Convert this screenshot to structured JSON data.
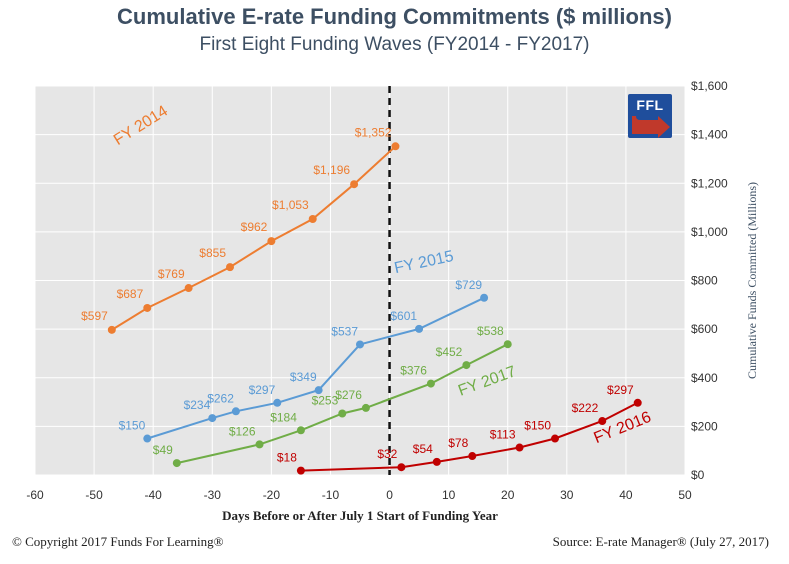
{
  "header": {
    "title": "Cumulative E-rate Funding Commitments ($ millions)",
    "subtitle": "First Eight Funding Waves (FY2014 - FY2017)"
  },
  "footer": {
    "copyright": "© Copyright 2017 Funds For Learning®",
    "source": "Source: E-rate Manager® (July 27, 2017)"
  },
  "logo": {
    "text": "FFL"
  },
  "chart_data": {
    "type": "line",
    "xlabel": "Days Before or After July 1 Start of Funding Year",
    "ylabel": "Cumulative Funds Committed (Millions)",
    "xlim": [
      -60,
      50
    ],
    "ylim": [
      0,
      1600
    ],
    "x_ticks": [
      -60,
      -50,
      -40,
      -30,
      -20,
      -10,
      0,
      10,
      20,
      30,
      40,
      50
    ],
    "y_ticks": [
      0,
      200,
      400,
      600,
      800,
      1000,
      1200,
      1400,
      1600
    ],
    "y_tick_labels": [
      "$0",
      "$200",
      "$400",
      "$600",
      "$800",
      "$1,000",
      "$1,200",
      "$1,400",
      "$1,600"
    ],
    "grid": true,
    "reference_line": {
      "x": 0,
      "style": "dashed"
    },
    "series": [
      {
        "name": "FY 2014",
        "color": "#ed7d31",
        "x": [
          -47,
          -41,
          -34,
          -27,
          -20,
          -13,
          -6,
          1
        ],
        "y": [
          597,
          687,
          769,
          855,
          962,
          1053,
          1196,
          1352
        ],
        "labels": [
          "$597",
          "$687",
          "$769",
          "$855",
          "$962",
          "$1,053",
          "$1,196",
          "$1,352"
        ]
      },
      {
        "name": "FY 2015",
        "color": "#5b9bd5",
        "x": [
          -41,
          -30,
          -26,
          -19,
          -12,
          -5,
          5,
          16
        ],
        "y": [
          150,
          234,
          262,
          297,
          349,
          537,
          601,
          729
        ],
        "labels": [
          "$150",
          "$234",
          "$262",
          "$297",
          "$349",
          "$537",
          "$601",
          "$729"
        ]
      },
      {
        "name": "FY 2017",
        "color": "#70ad47",
        "x": [
          -36,
          -22,
          -15,
          -8,
          -4,
          7,
          13,
          20
        ],
        "y": [
          49,
          126,
          184,
          253,
          276,
          376,
          452,
          538
        ],
        "labels": [
          "$49",
          "$126",
          "$184",
          "$253",
          "$276",
          "$376",
          "$452",
          "$538"
        ]
      },
      {
        "name": "FY 2016",
        "color": "#c00000",
        "x": [
          -15,
          2,
          8,
          14,
          22,
          28,
          36,
          42
        ],
        "y": [
          18,
          32,
          54,
          78,
          113,
          150,
          222,
          297
        ],
        "labels": [
          "$18",
          "$32",
          "$54",
          "$78",
          "$113",
          "$150",
          "$222",
          "$297"
        ]
      }
    ]
  }
}
